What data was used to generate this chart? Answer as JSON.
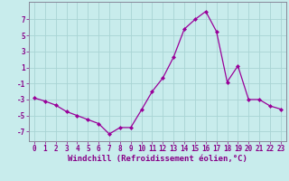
{
  "x": [
    0,
    1,
    2,
    3,
    4,
    5,
    6,
    7,
    8,
    9,
    10,
    11,
    12,
    13,
    14,
    15,
    16,
    17,
    18,
    19,
    20,
    21,
    22,
    23
  ],
  "y": [
    -2.8,
    -3.2,
    -3.7,
    -4.5,
    -5.0,
    -5.5,
    -6.0,
    -7.3,
    -6.5,
    -6.5,
    -4.3,
    -2.0,
    -0.3,
    2.3,
    5.8,
    7.0,
    8.0,
    5.5,
    -0.8,
    1.2,
    -3.0,
    -3.0,
    -3.8,
    -4.2
  ],
  "line_color": "#990099",
  "marker": "D",
  "marker_size": 2.0,
  "bg_color": "#c8ecec",
  "grid_color": "#a8d4d4",
  "axis_color": "#888899",
  "xlabel": "Windchill (Refroidissement éolien,°C)",
  "xlabel_color": "#880088",
  "tick_color": "#880088",
  "ylabel_ticks": [
    -7,
    -5,
    -3,
    -1,
    1,
    3,
    5,
    7
  ],
  "ylim": [
    -8.2,
    9.2
  ],
  "xlim": [
    -0.5,
    23.5
  ],
  "tick_fontsize": 5.5,
  "xlabel_fontsize": 6.5
}
